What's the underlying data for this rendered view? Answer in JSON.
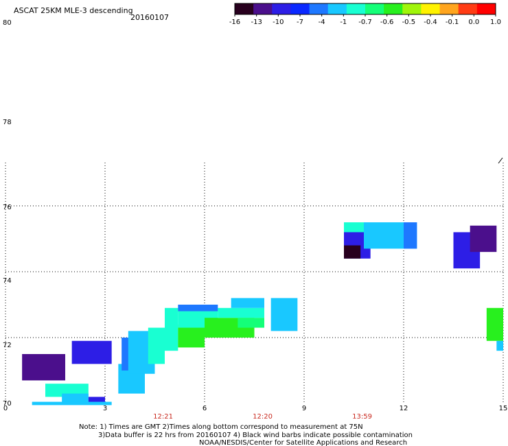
{
  "header": {
    "title": "ASCAT 25KM MLE-3 descending",
    "date": "20160107"
  },
  "colorbar": {
    "colors": [
      "#28001e",
      "#4b0f8c",
      "#2d1ee6",
      "#0a28ff",
      "#1e78ff",
      "#19c8ff",
      "#19ffd2",
      "#14ff78",
      "#28f01e",
      "#a0f50a",
      "#fff200",
      "#ffa51e",
      "#ff3c14",
      "#ff0000"
    ],
    "labels": [
      "-16",
      "-13",
      "-10",
      "-7",
      "-4",
      "-1",
      "-0.7",
      "-0.6",
      "-0.5",
      "-0.4",
      "-0.1",
      "0.0",
      "1.0"
    ]
  },
  "notes": [
    "Note: 1) Times are GMT 2)Times along bottom correspond to measurement at 75N",
    "3)Data buffer is 22 hrs from 20160107 4) Black wind barbs indicate possible contamination",
    "NOAA/NESDIS/Center for Satellite Applications and Research"
  ],
  "chart_data": {
    "type": "heatmap",
    "title": "ASCAT 25KM MLE-3 descending",
    "subtitle": "20160107",
    "xlim": [
      0,
      15
    ],
    "ylim": [
      70,
      80
    ],
    "x_ticks": [
      "0",
      "3",
      "6",
      "9",
      "12",
      "15"
    ],
    "y_ticks": [
      "70",
      "72",
      "74",
      "76",
      "78",
      "80"
    ],
    "y_ticks_displayed": [
      "70",
      "72",
      "74",
      "76",
      "78",
      "80"
    ],
    "time_labels": [
      {
        "x": 4.75,
        "label": "12:21"
      },
      {
        "x": 7.75,
        "label": "12:20"
      },
      {
        "x": 10.75,
        "label": "13:59"
      }
    ],
    "grid": true,
    "cells": [
      {
        "x0": 0.5,
        "x1": 1.8,
        "y0": 70.7,
        "y1": 71.5,
        "color": "#4b0f8c"
      },
      {
        "x0": 1.2,
        "x1": 2.5,
        "y0": 70.2,
        "y1": 70.6,
        "color": "#19ffd2"
      },
      {
        "x0": 1.7,
        "x1": 2.5,
        "y0": 70.0,
        "y1": 70.3,
        "color": "#19c8ff"
      },
      {
        "x0": 2.5,
        "x1": 3.0,
        "y0": 70.0,
        "y1": 70.2,
        "color": "#2d1ee6"
      },
      {
        "x0": 2.0,
        "x1": 3.2,
        "y0": 71.2,
        "y1": 71.9,
        "color": "#2d1ee6"
      },
      {
        "x0": 0.8,
        "x1": 3.2,
        "y0": 69.95,
        "y1": 70.05,
        "color": "#19c8ff"
      },
      {
        "x0": 3.4,
        "x1": 4.2,
        "y0": 70.3,
        "y1": 71.2,
        "color": "#19c8ff"
      },
      {
        "x0": 3.5,
        "x1": 4.2,
        "y0": 71.0,
        "y1": 72.0,
        "color": "#1e78ff"
      },
      {
        "x0": 3.7,
        "x1": 4.5,
        "y0": 70.9,
        "y1": 72.2,
        "color": "#19c8ff"
      },
      {
        "x0": 4.3,
        "x1": 4.8,
        "y0": 71.2,
        "y1": 72.3,
        "color": "#19ffd2"
      },
      {
        "x0": 4.8,
        "x1": 5.2,
        "y0": 71.6,
        "y1": 72.9,
        "color": "#19ffd2"
      },
      {
        "x0": 5.2,
        "x1": 6.0,
        "y0": 71.7,
        "y1": 72.4,
        "color": "#28f01e"
      },
      {
        "x0": 5.2,
        "x1": 6.4,
        "y0": 72.3,
        "y1": 72.9,
        "color": "#19ffd2"
      },
      {
        "x0": 5.2,
        "x1": 6.4,
        "y0": 72.8,
        "y1": 73.0,
        "color": "#1e78ff"
      },
      {
        "x0": 6.0,
        "x1": 7.5,
        "y0": 72.0,
        "y1": 72.6,
        "color": "#28f01e"
      },
      {
        "x0": 6.4,
        "x1": 7.8,
        "y0": 72.6,
        "y1": 72.9,
        "color": "#19ffd2"
      },
      {
        "x0": 6.8,
        "x1": 7.8,
        "y0": 72.9,
        "y1": 73.2,
        "color": "#19c8ff"
      },
      {
        "x0": 7.0,
        "x1": 7.8,
        "y0": 72.3,
        "y1": 72.6,
        "color": "#14ff78"
      },
      {
        "x0": 8.0,
        "x1": 8.8,
        "y0": 72.2,
        "y1": 73.2,
        "color": "#19c8ff"
      },
      {
        "x0": 10.2,
        "x1": 11.0,
        "y0": 74.4,
        "y1": 75.5,
        "color": "#2d1ee6"
      },
      {
        "x0": 10.2,
        "x1": 10.7,
        "y0": 74.4,
        "y1": 74.8,
        "color": "#28001e"
      },
      {
        "x0": 10.8,
        "x1": 12.4,
        "y0": 74.7,
        "y1": 75.5,
        "color": "#19c8ff"
      },
      {
        "x0": 10.2,
        "x1": 10.8,
        "y0": 75.2,
        "y1": 75.5,
        "color": "#19ffd2"
      },
      {
        "x0": 12.0,
        "x1": 12.4,
        "y0": 74.7,
        "y1": 75.5,
        "color": "#1e78ff"
      },
      {
        "x0": 13.5,
        "x1": 14.3,
        "y0": 74.1,
        "y1": 75.2,
        "color": "#2d1ee6"
      },
      {
        "x0": 14.0,
        "x1": 14.8,
        "y0": 74.6,
        "y1": 75.4,
        "color": "#4b0f8c"
      },
      {
        "x0": 14.5,
        "x1": 15.0,
        "y0": 71.9,
        "y1": 72.9,
        "color": "#28f01e"
      },
      {
        "x0": 14.8,
        "x1": 15.0,
        "y0": 71.6,
        "y1": 71.9,
        "color": "#19c8ff"
      }
    ]
  }
}
